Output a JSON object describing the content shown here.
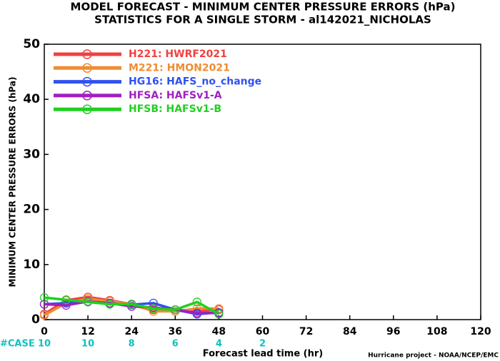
{
  "chart_data": {
    "type": "line",
    "title": "MODEL FORECAST - MINIMUM CENTER PRESSURE ERRORS (hPa)",
    "subtitle": "STATISTICS FOR A SINGLE STORM - al142021_NICHOLAS",
    "x_label": "Forecast lead time (hr)",
    "y_label": "MINIMUM CENTER PRESSURE ERRORS (hPa)",
    "footnote": "Hurricane project - NOAA/NCEP/EMC",
    "x": [
      0,
      6,
      12,
      18,
      24,
      30,
      36,
      42,
      48
    ],
    "series": [
      {
        "name": "H221: HWRF2021",
        "color": "#f04040",
        "values": [
          1.0,
          3.5,
          4.1,
          3.5,
          2.8,
          1.8,
          1.8,
          1.5,
          1.8
        ]
      },
      {
        "name": "M221: HMON2021",
        "color": "#f08c30",
        "values": [
          0.8,
          3.0,
          3.8,
          3.3,
          2.8,
          1.5,
          1.5,
          2.0,
          2.0
        ]
      },
      {
        "name": "HG16: HAFS_no_change",
        "color": "#3050f0",
        "values": [
          2.8,
          3.0,
          3.3,
          2.9,
          2.7,
          3.0,
          1.8,
          1.0,
          1.3
        ]
      },
      {
        "name": "HFSA: HAFSv1-A",
        "color": "#a020c0",
        "values": [
          2.8,
          2.6,
          3.3,
          3.0,
          2.4,
          2.2,
          1.8,
          1.2,
          1.2
        ]
      },
      {
        "name": "HFSB: HAFSv1-B",
        "color": "#20d020",
        "values": [
          4.0,
          3.6,
          3.2,
          2.8,
          2.8,
          2.0,
          1.8,
          3.2,
          1.0
        ]
      }
    ],
    "xlim": [
      0,
      120
    ],
    "xticks": [
      0,
      12,
      24,
      36,
      48,
      60,
      72,
      84,
      96,
      108,
      120
    ],
    "ylim": [
      0,
      50
    ],
    "yticks": [
      0,
      10,
      20,
      30,
      40,
      50
    ],
    "cases": {
      "label": "#CASE",
      "color": "#10c0c0",
      "x": [
        0,
        12,
        24,
        36,
        48,
        60
      ],
      "values": [
        10,
        10,
        8,
        6,
        4,
        2
      ]
    }
  }
}
